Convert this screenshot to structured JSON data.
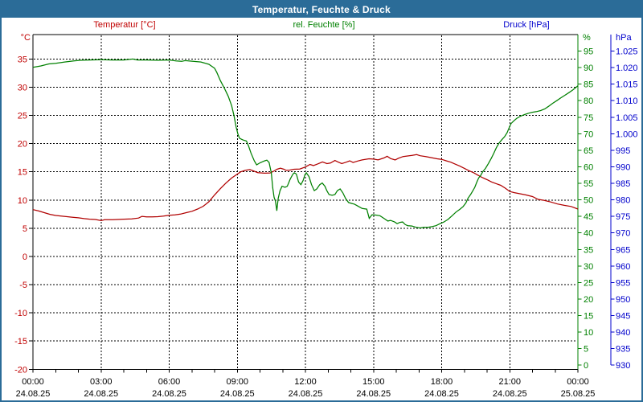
{
  "title_bar": {
    "title": "Temperatur, Feuchte & Druck"
  },
  "colors": {
    "titlebar_bg": "#2b6c98",
    "titlebar_text": "#ffffff",
    "background": "#ffffff",
    "grid": "#000000",
    "temperature_text": "#c00000",
    "temperature_line": "#b00000",
    "humidity": "#008000",
    "pressure": "#0000cc"
  },
  "chart_data": {
    "type": "line",
    "title": "Temperatur, Feuchte & Druck",
    "grid": "dashed, horizontal every 5 °C, vertical every 3 h",
    "legend": [
      {
        "label": "Temperatur [°C]",
        "color": "#c00000"
      },
      {
        "label": "rel. Feuchte [%]",
        "color": "#008000"
      },
      {
        "label": "Druck [hPa]",
        "color": "#0000cc"
      }
    ],
    "x_axis": {
      "range_hours": [
        0,
        24
      ],
      "minor_tick_every_hours": 1,
      "major_ticks": [
        {
          "hour": 0,
          "time": "00:00",
          "date": "24.08.25"
        },
        {
          "hour": 3,
          "time": "03:00",
          "date": "24.08.25"
        },
        {
          "hour": 6,
          "time": "06:00",
          "date": "24.08.25"
        },
        {
          "hour": 9,
          "time": "09:00",
          "date": "24.08.25"
        },
        {
          "hour": 12,
          "time": "12:00",
          "date": "24.08.25"
        },
        {
          "hour": 15,
          "time": "15:00",
          "date": "24.08.25"
        },
        {
          "hour": 18,
          "time": "18:00",
          "date": "24.08.25"
        },
        {
          "hour": 21,
          "time": "21:00",
          "date": "24.08.25"
        },
        {
          "hour": 24,
          "time": "00:00",
          "date": "25.08.25"
        }
      ]
    },
    "y_axes": {
      "temperature": {
        "unit": "°C",
        "side": "left",
        "color": "#c00000",
        "min": -20,
        "max": 35,
        "step": 5,
        "tick_labels": [
          "35",
          "30",
          "25",
          "20",
          "15",
          "10",
          "5",
          "0",
          "-5",
          "-10",
          "-15",
          "-20"
        ]
      },
      "humidity": {
        "unit": "%",
        "side": "right",
        "color": "#008000",
        "min": 0,
        "max": 95,
        "step": 5,
        "tick_labels": [
          "95",
          "90",
          "85",
          "80",
          "75",
          "70",
          "65",
          "60",
          "55",
          "50",
          "45",
          "40",
          "35",
          "30",
          "25",
          "20",
          "15",
          "10",
          "5",
          "0"
        ]
      },
      "pressure": {
        "unit": "hPa",
        "side": "right-outer",
        "color": "#0000cc",
        "min": 930,
        "max": 1025,
        "step": 5,
        "tick_labels": [
          "1.025",
          "1.020",
          "1.015",
          "1.010",
          "1.005",
          "1.000",
          "995",
          "990",
          "985",
          "980",
          "975",
          "970",
          "965",
          "960",
          "955",
          "950",
          "945",
          "940",
          "935",
          "930"
        ]
      }
    },
    "series": [
      {
        "name": "Temperatur",
        "axis": "temperature",
        "color": "#b00000",
        "points": [
          [
            0,
            8.3
          ],
          [
            0.25,
            8.05
          ],
          [
            0.5,
            7.75
          ],
          [
            0.75,
            7.45
          ],
          [
            1,
            7.25
          ],
          [
            1.25,
            7.15
          ],
          [
            1.5,
            7.05
          ],
          [
            1.75,
            6.95
          ],
          [
            2,
            6.85
          ],
          [
            2.25,
            6.7
          ],
          [
            2.5,
            6.6
          ],
          [
            2.75,
            6.55
          ],
          [
            3,
            6.35
          ],
          [
            3.15,
            6.5
          ],
          [
            3.5,
            6.5
          ],
          [
            4,
            6.6
          ],
          [
            4.35,
            6.65
          ],
          [
            4.65,
            6.8
          ],
          [
            4.8,
            7.1
          ],
          [
            5,
            7.0
          ],
          [
            5.25,
            7.0
          ],
          [
            5.5,
            7.05
          ],
          [
            5.75,
            7.15
          ],
          [
            6,
            7.3
          ],
          [
            6.25,
            7.35
          ],
          [
            6.5,
            7.5
          ],
          [
            6.75,
            7.75
          ],
          [
            7,
            8.0
          ],
          [
            7.25,
            8.4
          ],
          [
            7.5,
            8.9
          ],
          [
            7.75,
            9.7
          ],
          [
            8,
            10.9
          ],
          [
            8.25,
            12.0
          ],
          [
            8.5,
            13.0
          ],
          [
            8.75,
            13.9
          ],
          [
            9,
            14.6
          ],
          [
            9.15,
            15.0
          ],
          [
            9.35,
            15.25
          ],
          [
            9.55,
            15.4
          ],
          [
            9.75,
            15.1
          ],
          [
            9.9,
            14.85
          ],
          [
            10.2,
            14.75
          ],
          [
            10.45,
            14.8
          ],
          [
            10.6,
            15.1
          ],
          [
            10.75,
            15.45
          ],
          [
            10.9,
            15.65
          ],
          [
            11.05,
            15.45
          ],
          [
            11.15,
            15.25
          ],
          [
            11.3,
            15.3
          ],
          [
            11.5,
            15.45
          ],
          [
            11.75,
            15.5
          ],
          [
            12,
            15.85
          ],
          [
            12.2,
            16.3
          ],
          [
            12.35,
            16.1
          ],
          [
            12.55,
            16.4
          ],
          [
            12.75,
            16.75
          ],
          [
            12.95,
            16.45
          ],
          [
            13.1,
            16.55
          ],
          [
            13.3,
            17.0
          ],
          [
            13.45,
            16.7
          ],
          [
            13.6,
            16.45
          ],
          [
            13.8,
            16.7
          ],
          [
            13.95,
            16.95
          ],
          [
            14.1,
            16.65
          ],
          [
            14.3,
            16.9
          ],
          [
            14.5,
            17.1
          ],
          [
            14.8,
            17.3
          ],
          [
            15,
            17.25
          ],
          [
            15.2,
            17.1
          ],
          [
            15.45,
            17.45
          ],
          [
            15.6,
            17.75
          ],
          [
            15.75,
            17.35
          ],
          [
            15.95,
            17.1
          ],
          [
            16.1,
            17.4
          ],
          [
            16.3,
            17.7
          ],
          [
            16.5,
            17.8
          ],
          [
            16.7,
            17.9
          ],
          [
            16.9,
            18.05
          ],
          [
            17.05,
            17.85
          ],
          [
            17.3,
            17.7
          ],
          [
            17.55,
            17.5
          ],
          [
            17.8,
            17.3
          ],
          [
            18,
            17.2
          ],
          [
            18.2,
            16.95
          ],
          [
            18.4,
            16.7
          ],
          [
            18.6,
            16.35
          ],
          [
            18.8,
            16.0
          ],
          [
            19,
            15.6
          ],
          [
            19.2,
            15.2
          ],
          [
            19.4,
            14.85
          ],
          [
            19.6,
            14.4
          ],
          [
            19.8,
            13.95
          ],
          [
            20,
            13.6
          ],
          [
            20.2,
            13.2
          ],
          [
            20.4,
            12.9
          ],
          [
            20.6,
            12.6
          ],
          [
            20.8,
            12.1
          ],
          [
            21,
            11.5
          ],
          [
            21.2,
            11.3
          ],
          [
            21.45,
            11.1
          ],
          [
            21.7,
            10.9
          ],
          [
            22,
            10.6
          ],
          [
            22.25,
            10.1
          ],
          [
            22.5,
            9.95
          ],
          [
            22.8,
            9.65
          ],
          [
            23.1,
            9.3
          ],
          [
            23.4,
            9.05
          ],
          [
            23.7,
            8.85
          ],
          [
            24,
            8.4
          ]
        ]
      },
      {
        "name": "rel. Feuchte",
        "axis": "humidity",
        "color": "#008000",
        "points": [
          [
            0,
            90.1
          ],
          [
            0.35,
            90.5
          ],
          [
            0.7,
            91.1
          ],
          [
            1,
            91.3
          ],
          [
            1.4,
            91.7
          ],
          [
            1.8,
            92.0
          ],
          [
            2.1,
            92.2
          ],
          [
            2.5,
            92.3
          ],
          [
            3,
            92.4
          ],
          [
            3.5,
            92.3
          ],
          [
            4,
            92.3
          ],
          [
            4.4,
            92.6
          ],
          [
            4.6,
            92.3
          ],
          [
            5,
            92.3
          ],
          [
            5.5,
            92.2
          ],
          [
            6,
            92.3
          ],
          [
            6.3,
            92.0
          ],
          [
            6.55,
            91.9
          ],
          [
            6.7,
            92.1
          ],
          [
            7.05,
            91.9
          ],
          [
            7.4,
            91.7
          ],
          [
            7.75,
            91.0
          ],
          [
            8,
            89.8
          ],
          [
            8.1,
            88.5
          ],
          [
            8.25,
            86.1
          ],
          [
            8.45,
            83.5
          ],
          [
            8.6,
            81.3
          ],
          [
            8.75,
            78.5
          ],
          [
            8.85,
            75.6
          ],
          [
            8.95,
            72.0
          ],
          [
            9.03,
            69.8
          ],
          [
            9.1,
            68.6
          ],
          [
            9.25,
            68.1
          ],
          [
            9.4,
            67.8
          ],
          [
            9.5,
            66.2
          ],
          [
            9.6,
            64.2
          ],
          [
            9.75,
            61.8
          ],
          [
            9.85,
            60.6
          ],
          [
            10,
            61.2
          ],
          [
            10.2,
            61.8
          ],
          [
            10.3,
            62.0
          ],
          [
            10.4,
            61.3
          ],
          [
            10.5,
            58.1
          ],
          [
            10.56,
            53.7
          ],
          [
            10.62,
            50.8
          ],
          [
            10.68,
            49.6
          ],
          [
            10.74,
            46.7
          ],
          [
            10.8,
            50.4
          ],
          [
            10.88,
            52.8
          ],
          [
            10.97,
            54.1
          ],
          [
            11.1,
            53.8
          ],
          [
            11.2,
            54.1
          ],
          [
            11.33,
            56.3
          ],
          [
            11.45,
            57.8
          ],
          [
            11.51,
            58.2
          ],
          [
            11.6,
            57.8
          ],
          [
            11.7,
            55.4
          ],
          [
            11.8,
            54.6
          ],
          [
            11.9,
            55.9
          ],
          [
            11.98,
            57.6
          ],
          [
            12.04,
            58.2
          ],
          [
            12.16,
            57.0
          ],
          [
            12.27,
            54.6
          ],
          [
            12.39,
            52.8
          ],
          [
            12.5,
            53.3
          ],
          [
            12.63,
            54.6
          ],
          [
            12.74,
            55.1
          ],
          [
            12.86,
            54.1
          ],
          [
            12.94,
            52.8
          ],
          [
            13.04,
            51.6
          ],
          [
            13.18,
            51.4
          ],
          [
            13.3,
            51.6
          ],
          [
            13.41,
            52.8
          ],
          [
            13.53,
            53.3
          ],
          [
            13.65,
            52.1
          ],
          [
            13.77,
            50.4
          ],
          [
            13.9,
            49.2
          ],
          [
            14.05,
            48.9
          ],
          [
            14.16,
            48.7
          ],
          [
            14.34,
            48.0
          ],
          [
            14.5,
            47.4
          ],
          [
            14.7,
            47.2
          ],
          [
            14.81,
            44.4
          ],
          [
            14.93,
            45.5
          ],
          [
            15.1,
            45.4
          ],
          [
            15.28,
            45.2
          ],
          [
            15.46,
            44.4
          ],
          [
            15.63,
            43.6
          ],
          [
            15.75,
            43.8
          ],
          [
            15.93,
            43.3
          ],
          [
            16.04,
            42.8
          ],
          [
            16.16,
            43.2
          ],
          [
            16.28,
            43.3
          ],
          [
            16.4,
            42.5
          ],
          [
            16.51,
            42.2
          ],
          [
            16.69,
            42.1
          ],
          [
            16.87,
            41.7
          ],
          [
            17.04,
            41.5
          ],
          [
            17.22,
            41.7
          ],
          [
            17.4,
            41.7
          ],
          [
            17.57,
            41.9
          ],
          [
            17.75,
            42.2
          ],
          [
            17.93,
            42.8
          ],
          [
            18.1,
            43.3
          ],
          [
            18.28,
            44.1
          ],
          [
            18.46,
            45.2
          ],
          [
            18.63,
            46.3
          ],
          [
            18.81,
            47.2
          ],
          [
            18.95,
            48.0
          ],
          [
            19.07,
            49.1
          ],
          [
            19.16,
            50.5
          ],
          [
            19.28,
            51.7
          ],
          [
            19.36,
            52.6
          ],
          [
            19.46,
            53.8
          ],
          [
            19.55,
            55.4
          ],
          [
            19.63,
            56.6
          ],
          [
            19.72,
            57.4
          ],
          [
            19.81,
            58.5
          ],
          [
            19.93,
            59.5
          ],
          [
            20.06,
            61.0
          ],
          [
            20.18,
            62.5
          ],
          [
            20.29,
            64.0
          ],
          [
            20.41,
            65.8
          ],
          [
            20.53,
            67.2
          ],
          [
            20.65,
            68.2
          ],
          [
            20.77,
            69.1
          ],
          [
            20.88,
            70.3
          ],
          [
            21,
            72.3
          ],
          [
            21.06,
            73.1
          ],
          [
            21.18,
            73.9
          ],
          [
            21.3,
            74.6
          ],
          [
            21.47,
            75.3
          ],
          [
            21.65,
            75.8
          ],
          [
            21.83,
            76.2
          ],
          [
            22,
            76.5
          ],
          [
            22.18,
            76.7
          ],
          [
            22.36,
            77.0
          ],
          [
            22.54,
            77.5
          ],
          [
            22.71,
            78.3
          ],
          [
            22.89,
            79.2
          ],
          [
            23.07,
            80.0
          ],
          [
            23.24,
            80.8
          ],
          [
            23.42,
            81.6
          ],
          [
            23.6,
            82.4
          ],
          [
            23.77,
            83.2
          ],
          [
            23.95,
            84.2
          ],
          [
            24,
            84.5
          ]
        ]
      },
      {
        "name": "Druck",
        "axis": "pressure",
        "color": "#0000cc",
        "points": []
      }
    ]
  }
}
